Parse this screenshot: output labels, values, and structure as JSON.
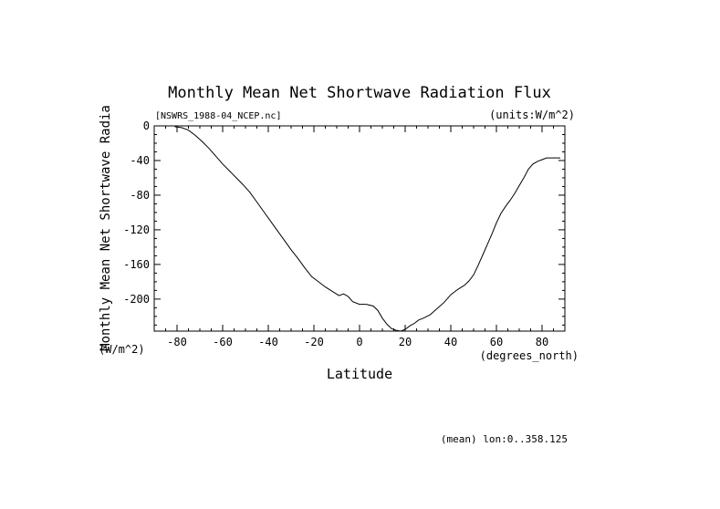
{
  "chart_data": {
    "type": "line",
    "title": "Monthly Mean Net Shortwave Radiation Flux",
    "subtitle_left": "[NSWRS_1988-04_NCEP.nc]",
    "subtitle_right": "(units:W/m^2)",
    "xlabel": "Latitude",
    "x_units": "(degrees_north)",
    "ylabel": "Monthly Mean Net Shortwave Radia",
    "y_units": "(W/m^2)",
    "footnote": "(mean) lon:0..358.125",
    "xlim": [
      -90,
      90
    ],
    "ylim": [
      -237,
      0
    ],
    "x_ticks": [
      -80,
      -60,
      -40,
      -20,
      0,
      20,
      40,
      60,
      80
    ],
    "x_tick_labels": [
      "-80",
      "-60",
      "-40",
      "-20",
      "0",
      "20",
      "40",
      "60",
      "80"
    ],
    "y_ticks": [
      0,
      -40,
      -80,
      -120,
      -160,
      -200
    ],
    "y_tick_labels": [
      "0",
      "-40",
      "-80",
      "-120",
      "-160",
      "-200"
    ],
    "grid": false,
    "line_color": "#000000",
    "series": [
      {
        "x": [
          -81,
          -78,
          -75,
          -72,
          -69,
          -66,
          -63,
          -60,
          -57,
          -54,
          -51,
          -48,
          -45,
          -42,
          -39,
          -36,
          -33,
          -30,
          -27,
          -24,
          -21,
          -18,
          -15,
          -12,
          -9,
          -7,
          -5,
          -3,
          0,
          3,
          6,
          8,
          10,
          12,
          14,
          16,
          18,
          20,
          22,
          24,
          26,
          28,
          31,
          34,
          37,
          40,
          43,
          46,
          48,
          50,
          52,
          54,
          56,
          58,
          60,
          62,
          64,
          66,
          68,
          70,
          72,
          74,
          76,
          78,
          80,
          82,
          84,
          86,
          88
        ],
        "y": [
          -1,
          -2,
          -5,
          -11,
          -18,
          -26,
          -35,
          -44,
          -52,
          -60,
          -68,
          -77,
          -88,
          -99,
          -110,
          -121,
          -132,
          -143,
          -153,
          -164,
          -174,
          -180,
          -186,
          -191,
          -196,
          -194,
          -197,
          -203,
          -206,
          -206,
          -208,
          -213,
          -222,
          -229,
          -234,
          -236,
          -237,
          -235,
          -231,
          -228,
          -224,
          -222,
          -218,
          -211,
          -204,
          -195,
          -189,
          -184,
          -179,
          -172,
          -161,
          -149,
          -137,
          -125,
          -112,
          -101,
          -93,
          -86,
          -78,
          -69,
          -60,
          -50,
          -44,
          -41,
          -39,
          -37,
          -37,
          -37,
          -37
        ]
      }
    ]
  }
}
